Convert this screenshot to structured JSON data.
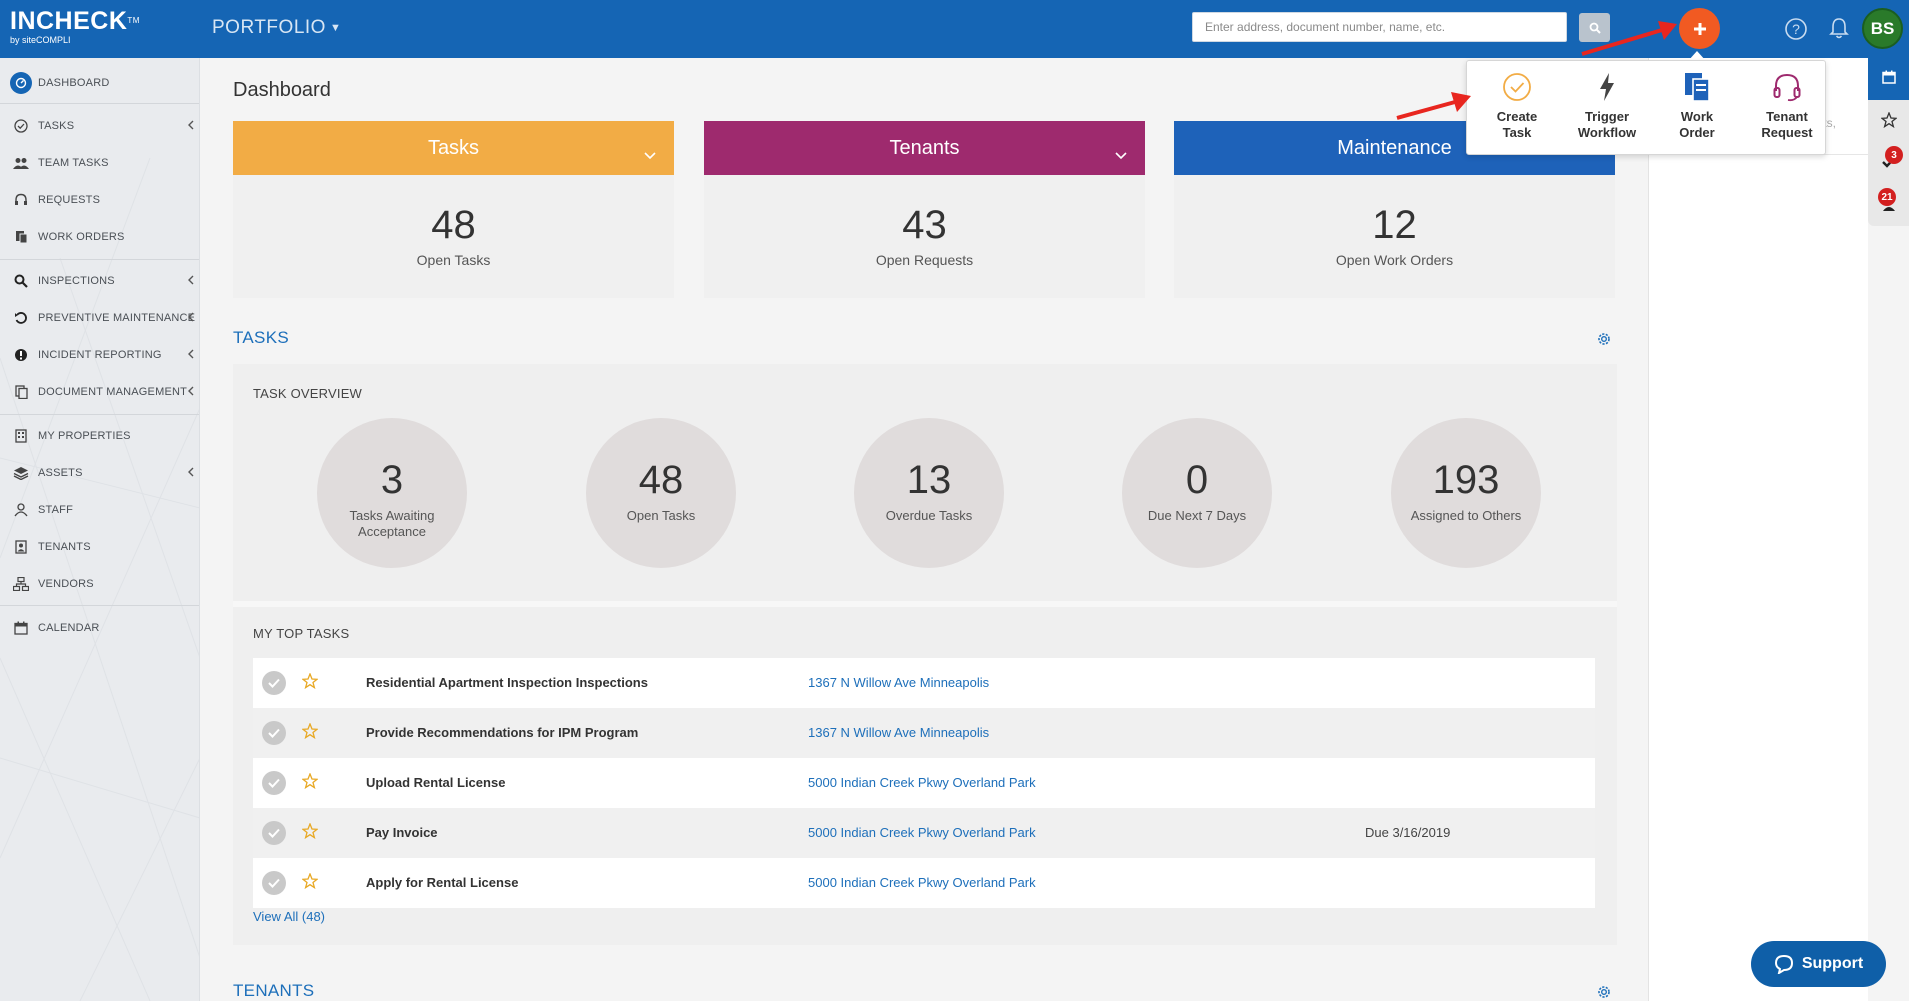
{
  "header": {
    "logo": "INCHECK",
    "logo_tm": "TM",
    "logo_sub": "by siteCOMPLI",
    "portfolio": "PORTFOLIO",
    "search_placeholder": "Enter address, document number, name, etc.",
    "avatar_initials": "BS"
  },
  "sidebar": {
    "items": [
      {
        "label": "DASHBOARD",
        "icon": "dashboard-icon"
      },
      {
        "label": "TASKS",
        "icon": "check-circle-icon"
      },
      {
        "label": "TEAM TASKS",
        "icon": "users-icon"
      },
      {
        "label": "REQUESTS",
        "icon": "headset-icon"
      },
      {
        "label": "WORK ORDERS",
        "icon": "work-order-icon"
      },
      {
        "label": "INSPECTIONS",
        "icon": "search-icon"
      },
      {
        "label": "PREVENTIVE MAINTENANCE",
        "icon": "history-icon"
      },
      {
        "label": "INCIDENT REPORTING",
        "icon": "alert-icon"
      },
      {
        "label": "DOCUMENT MANAGEMENT",
        "icon": "documents-icon"
      },
      {
        "label": "MY PROPERTIES",
        "icon": "building-icon"
      },
      {
        "label": "ASSETS",
        "icon": "layers-icon"
      },
      {
        "label": "STAFF",
        "icon": "staff-icon"
      },
      {
        "label": "TENANTS",
        "icon": "contact-icon"
      },
      {
        "label": "VENDORS",
        "icon": "sitemap-icon"
      },
      {
        "label": "CALENDAR",
        "icon": "calendar-icon"
      }
    ]
  },
  "main": {
    "title": "Dashboard",
    "cards": [
      {
        "title": "Tasks",
        "value": "48",
        "label": "Open Tasks",
        "color": "#f2ac45"
      },
      {
        "title": "Tenants",
        "value": "43",
        "label": "Open Requests",
        "color": "#9e2a6e"
      },
      {
        "title": "Maintenance",
        "value": "12",
        "label": "Open Work Orders",
        "color": "#1e62b9"
      }
    ],
    "tasks_section": "TASKS",
    "task_overview": "TASK OVERVIEW",
    "overview": [
      {
        "value": "3",
        "label": "Tasks Awaiting Acceptance"
      },
      {
        "value": "48",
        "label": "Open Tasks"
      },
      {
        "value": "13",
        "label": "Overdue Tasks"
      },
      {
        "value": "0",
        "label": "Due Next 7 Days"
      },
      {
        "value": "193",
        "label": "Assigned to Others"
      }
    ],
    "my_top_tasks": "MY TOP TASKS",
    "top_tasks": [
      {
        "name": "Residential Apartment Inspection Inspections",
        "address": "1367 N Willow Ave Minneapolis",
        "due": ""
      },
      {
        "name": "Provide Recommendations for IPM Program",
        "address": "1367 N Willow Ave Minneapolis",
        "due": ""
      },
      {
        "name": "Upload Rental License",
        "address": "5000 Indian Creek Pkwy Overland Park",
        "due": ""
      },
      {
        "name": "Pay Invoice",
        "address": "5000 Indian Creek Pkwy Overland Park",
        "due": "Due 3/16/2019"
      },
      {
        "name": "Apply for Rental License",
        "address": "5000 Indian Creek Pkwy Overland Park",
        "due": ""
      }
    ],
    "view_all": "View All (48)",
    "tenants_section": "TENANTS"
  },
  "dropdown": {
    "items": [
      {
        "line1": "Create",
        "line2": "Task",
        "icon": "check-circle-icon"
      },
      {
        "line1": "Trigger",
        "line2": "Workflow",
        "icon": "bolt-icon"
      },
      {
        "line1": "Work",
        "line2": "Order",
        "icon": "work-order-icon"
      },
      {
        "line1": "Tenant",
        "line2": "Request",
        "icon": "headset-icon"
      }
    ]
  },
  "right_panel": {
    "partial_text": "ents,",
    "badge_tasks": "3",
    "badge_requests": "21"
  },
  "support": {
    "label": "Support"
  },
  "colors": {
    "brand_blue": "#1565b4",
    "accent_orange": "#f15a22",
    "link_blue": "#1d6fba"
  }
}
